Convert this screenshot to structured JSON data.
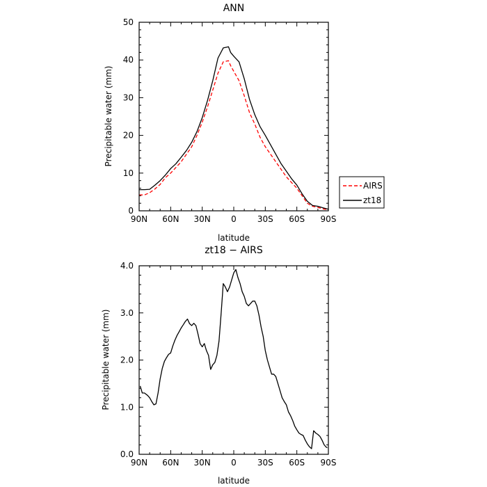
{
  "chart_data": [
    {
      "type": "line",
      "title": "ANN",
      "xlabel": "latitude",
      "ylabel": "Precipitable water (mm)",
      "xlim": [
        90,
        -90
      ],
      "ylim": [
        0,
        50
      ],
      "x_tick_values": [
        90,
        60,
        30,
        0,
        -30,
        -60,
        -90
      ],
      "x_tick_labels": [
        "90N",
        "60N",
        "30N",
        "0",
        "30S",
        "60S",
        "90S"
      ],
      "y_tick_values": [
        0,
        10,
        20,
        30,
        40,
        50
      ],
      "y_tick_labels": [
        "0",
        "10",
        "20",
        "30",
        "40",
        "50"
      ],
      "grid": false,
      "legend_position": "outside-right",
      "series": [
        {
          "name": "AIRS",
          "color": "#ff0000",
          "dash": "dashed",
          "x": [
            90,
            85,
            80,
            75,
            70,
            65,
            60,
            55,
            50,
            45,
            40,
            35,
            30,
            25,
            20,
            15,
            10,
            5,
            3,
            0,
            -5,
            -10,
            -15,
            -20,
            -25,
            -30,
            -35,
            -40,
            -45,
            -50,
            -55,
            -60,
            -65,
            -70,
            -75,
            -80,
            -85,
            -90
          ],
          "values": [
            4.2,
            4.2,
            4.8,
            5.8,
            7.0,
            8.8,
            10.0,
            11.5,
            13.0,
            15.0,
            17.0,
            20.0,
            23.5,
            27.5,
            32.0,
            36.5,
            39.5,
            39.8,
            38.5,
            37.0,
            34.5,
            30.5,
            26.0,
            23.0,
            19.5,
            17.0,
            15.0,
            13.0,
            11.0,
            9.0,
            7.5,
            6.0,
            4.0,
            2.0,
            1.2,
            0.9,
            0.5,
            0.3
          ]
        },
        {
          "name": "zt18",
          "color": "#000000",
          "dash": "solid",
          "x": [
            90,
            85,
            80,
            75,
            70,
            65,
            60,
            55,
            50,
            45,
            40,
            35,
            30,
            25,
            20,
            15,
            10,
            5,
            3,
            0,
            -5,
            -10,
            -15,
            -20,
            -25,
            -30,
            -35,
            -40,
            -45,
            -50,
            -55,
            -60,
            -65,
            -70,
            -75,
            -80,
            -85,
            -90
          ],
          "values": [
            5.6,
            5.6,
            5.7,
            6.8,
            8.0,
            9.5,
            11.2,
            12.5,
            14.2,
            16.0,
            18.2,
            21.0,
            24.7,
            29.2,
            34.5,
            40.5,
            43.2,
            43.5,
            42.0,
            41.0,
            39.5,
            35.0,
            29.5,
            25.5,
            22.3,
            20.0,
            17.5,
            15.0,
            12.5,
            10.5,
            8.5,
            6.8,
            4.5,
            2.5,
            1.4,
            1.2,
            0.8,
            0.4
          ]
        }
      ]
    },
    {
      "type": "line",
      "title": "zt18 − AIRS",
      "xlabel": "latitude",
      "ylabel": "Precipitable water (mm)",
      "xlim": [
        90,
        -90
      ],
      "ylim": [
        0,
        4
      ],
      "x_tick_values": [
        90,
        60,
        30,
        0,
        -30,
        -60,
        -90
      ],
      "x_tick_labels": [
        "90N",
        "60N",
        "30N",
        "0",
        "30S",
        "60S",
        "90S"
      ],
      "y_tick_values": [
        0,
        1,
        2,
        3,
        4
      ],
      "y_tick_labels": [
        "0.0",
        "1.0",
        "2.0",
        "3.0",
        "4.0"
      ],
      "grid": false,
      "series": [
        {
          "color": "#000000",
          "dash": "solid",
          "x": [
            89,
            87,
            85,
            82,
            80,
            78,
            76,
            74,
            72,
            70,
            68,
            66,
            64,
            62,
            60,
            58,
            56,
            54,
            52,
            50,
            48,
            46,
            44,
            42,
            40,
            38,
            36,
            34,
            32,
            30,
            28,
            26,
            24,
            22,
            20,
            18,
            16,
            14,
            12,
            10,
            8,
            6,
            4,
            2,
            0,
            -2,
            -4,
            -6,
            -8,
            -10,
            -12,
            -14,
            -16,
            -18,
            -20,
            -22,
            -24,
            -26,
            -28,
            -30,
            -32,
            -34,
            -36,
            -38,
            -40,
            -42,
            -44,
            -46,
            -48,
            -50,
            -52,
            -54,
            -56,
            -58,
            -60,
            -62,
            -64,
            -66,
            -68,
            -70,
            -72,
            -74,
            -76,
            -78,
            -80,
            -82,
            -84,
            -86,
            -88,
            -89
          ],
          "values": [
            1.45,
            1.3,
            1.3,
            1.25,
            1.2,
            1.12,
            1.05,
            1.07,
            1.3,
            1.6,
            1.82,
            1.97,
            2.05,
            2.12,
            2.15,
            2.3,
            2.42,
            2.52,
            2.6,
            2.68,
            2.75,
            2.82,
            2.87,
            2.77,
            2.73,
            2.78,
            2.73,
            2.55,
            2.35,
            2.28,
            2.35,
            2.2,
            2.1,
            1.8,
            1.9,
            1.95,
            2.1,
            2.4,
            3.0,
            3.62,
            3.55,
            3.45,
            3.55,
            3.7,
            3.85,
            3.92,
            3.75,
            3.62,
            3.45,
            3.35,
            3.2,
            3.15,
            3.2,
            3.25,
            3.25,
            3.15,
            2.95,
            2.7,
            2.5,
            2.2,
            2.0,
            1.85,
            1.7,
            1.7,
            1.65,
            1.5,
            1.35,
            1.2,
            1.12,
            1.05,
            0.9,
            0.82,
            0.72,
            0.6,
            0.52,
            0.45,
            0.42,
            0.4,
            0.3,
            0.22,
            0.16,
            0.12,
            0.5,
            0.45,
            0.42,
            0.38,
            0.3,
            0.2,
            0.15,
            0.14
          ]
        }
      ]
    }
  ]
}
